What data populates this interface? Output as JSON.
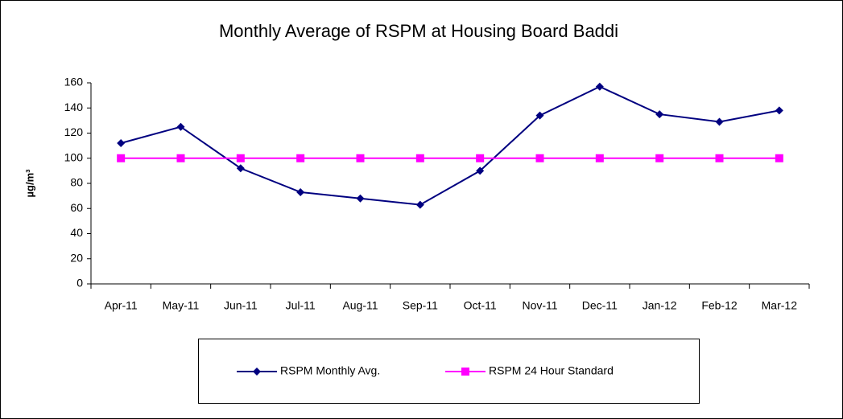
{
  "chart_data": {
    "type": "line",
    "title": "Monthly Average of RSPM at Housing Board Baddi",
    "y_label": "µg/m³",
    "categories": [
      "Apr-11",
      "May-11",
      "Jun-11",
      "Jul-11",
      "Aug-11",
      "Sep-11",
      "Oct-11",
      "Nov-11",
      "Dec-11",
      "Jan-12",
      "Feb-12",
      "Mar-12"
    ],
    "series": [
      {
        "name": "RSPM Monthly Avg.",
        "color": "#000080",
        "marker": "diamond",
        "values": [
          112,
          125,
          92,
          73,
          68,
          63,
          90,
          134,
          157,
          135,
          129,
          138
        ]
      },
      {
        "name": "RSPM 24 Hour Standard",
        "color": "#ff00ff",
        "marker": "square",
        "values": [
          100,
          100,
          100,
          100,
          100,
          100,
          100,
          100,
          100,
          100,
          100,
          100
        ]
      }
    ],
    "ylim": [
      0,
      160
    ],
    "yticks": [
      0,
      20,
      40,
      60,
      80,
      100,
      120,
      140,
      160
    ],
    "grid": false,
    "legend": "bottom"
  }
}
